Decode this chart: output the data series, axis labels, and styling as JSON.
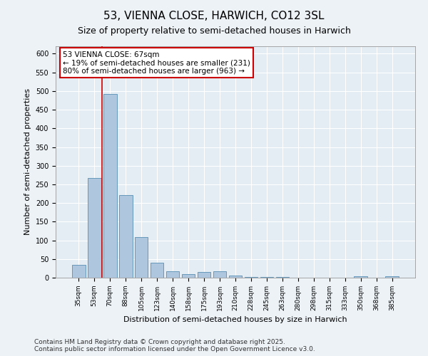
{
  "title": "53, VIENNA CLOSE, HARWICH, CO12 3SL",
  "subtitle": "Size of property relative to semi-detached houses in Harwich",
  "xlabel": "Distribution of semi-detached houses by size in Harwich",
  "ylabel": "Number of semi-detached properties",
  "categories": [
    "35sqm",
    "53sqm",
    "70sqm",
    "88sqm",
    "105sqm",
    "123sqm",
    "140sqm",
    "158sqm",
    "175sqm",
    "193sqm",
    "210sqm",
    "228sqm",
    "245sqm",
    "263sqm",
    "280sqm",
    "298sqm",
    "315sqm",
    "333sqm",
    "350sqm",
    "368sqm",
    "385sqm"
  ],
  "values": [
    35,
    268,
    493,
    222,
    109,
    40,
    17,
    10,
    15,
    18,
    5,
    2,
    1,
    1,
    0,
    0,
    0,
    0,
    3,
    0,
    3
  ],
  "bar_color": "#aec6de",
  "bar_edge_color": "#6699bb",
  "vline_color": "#cc0000",
  "vline_x_index": 1.5,
  "annotation_text_line1": "53 VIENNA CLOSE: 67sqm",
  "annotation_text_line2": "← 19% of semi-detached houses are smaller (231)",
  "annotation_text_line3": "80% of semi-detached houses are larger (963) →",
  "ylim": [
    0,
    620
  ],
  "yticks": [
    0,
    50,
    100,
    150,
    200,
    250,
    300,
    350,
    400,
    450,
    500,
    550,
    600
  ],
  "background_color": "#edf2f7",
  "plot_background_color": "#e4ecf4",
  "grid_color": "#ffffff",
  "footer_text": "Contains HM Land Registry data © Crown copyright and database right 2025.\nContains public sector information licensed under the Open Government Licence v3.0.",
  "title_fontsize": 11,
  "subtitle_fontsize": 9,
  "tick_fontsize": 6.5,
  "ylabel_fontsize": 8,
  "xlabel_fontsize": 8,
  "annotation_fontsize": 7.5,
  "footer_fontsize": 6.5
}
